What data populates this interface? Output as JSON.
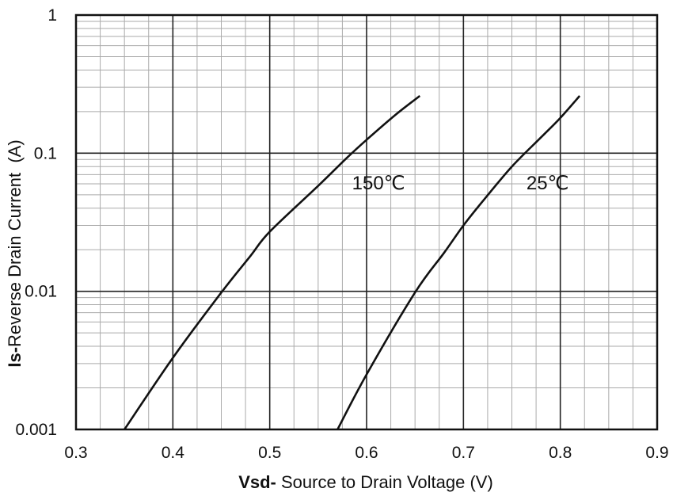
{
  "chart_data": {
    "type": "line",
    "xlabel_bold": "Vsd-",
    "xlabel_rest": " Source to Drain Voltage (V)",
    "ylabel_bold": "Is-",
    "ylabel_rest": "Reverse Drain Current  (A)",
    "xlim": [
      0.3,
      0.9
    ],
    "ylim": [
      0.001,
      1
    ],
    "yscale": "log",
    "grid": true,
    "x_ticks": [
      "0.3",
      "0.4",
      "0.5",
      "0.6",
      "0.7",
      "0.8",
      "0.9"
    ],
    "y_ticks": [
      "1",
      "0.1",
      "0.01",
      "0.001"
    ],
    "annotations": [
      {
        "text": "150℃",
        "series": "150℃"
      },
      {
        "text": "25℃",
        "series": "25℃"
      }
    ],
    "series": [
      {
        "name": "150℃",
        "points": [
          [
            0.35,
            0.001
          ],
          [
            0.4,
            0.0033
          ],
          [
            0.45,
            0.0098
          ],
          [
            0.48,
            0.018
          ],
          [
            0.5,
            0.027
          ],
          [
            0.55,
            0.058
          ],
          [
            0.58,
            0.093
          ],
          [
            0.6,
            0.125
          ],
          [
            0.63,
            0.19
          ],
          [
            0.655,
            0.26
          ]
        ]
      },
      {
        "name": "25℃",
        "points": [
          [
            0.57,
            0.001
          ],
          [
            0.6,
            0.0025
          ],
          [
            0.65,
            0.0098
          ],
          [
            0.68,
            0.019
          ],
          [
            0.7,
            0.03
          ],
          [
            0.72,
            0.045
          ],
          [
            0.75,
            0.08
          ],
          [
            0.78,
            0.13
          ],
          [
            0.8,
            0.18
          ],
          [
            0.82,
            0.26
          ]
        ]
      }
    ]
  }
}
